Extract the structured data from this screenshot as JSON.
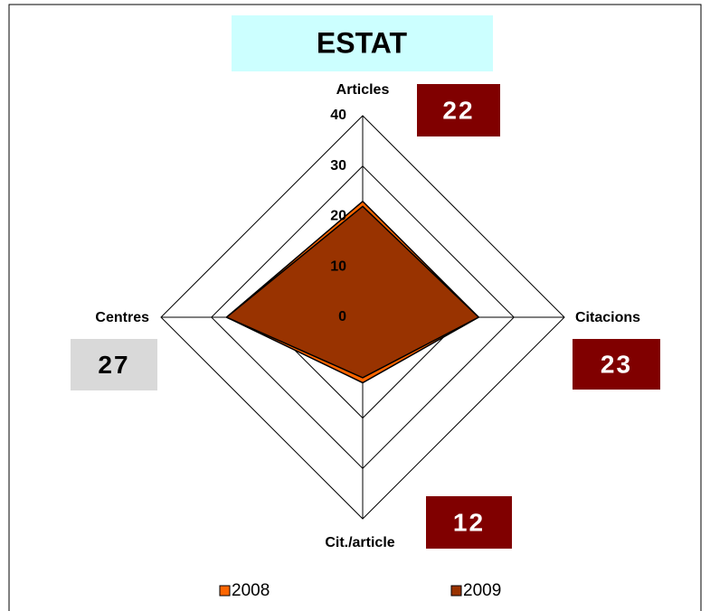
{
  "chart_data": {
    "type": "radar",
    "title": "ESTAT",
    "categories": [
      "Articles",
      "Citacions",
      "Cit./article",
      "Centres"
    ],
    "series": [
      {
        "name": "2008",
        "color": "#ff6600",
        "values": [
          23,
          23,
          13,
          27
        ]
      },
      {
        "name": "2009",
        "color": "#993300",
        "values": [
          22,
          23,
          12,
          27
        ]
      }
    ],
    "ylim": [
      0,
      40
    ],
    "yticks": [
      0,
      10,
      20,
      30,
      40
    ],
    "grid": true,
    "callouts": [
      {
        "text": "22",
        "color": "#800000"
      },
      {
        "text": "23",
        "color": "#800000"
      },
      {
        "text": "12",
        "color": "#800000"
      },
      {
        "text": "27",
        "color": "#d9d9d9"
      }
    ]
  }
}
